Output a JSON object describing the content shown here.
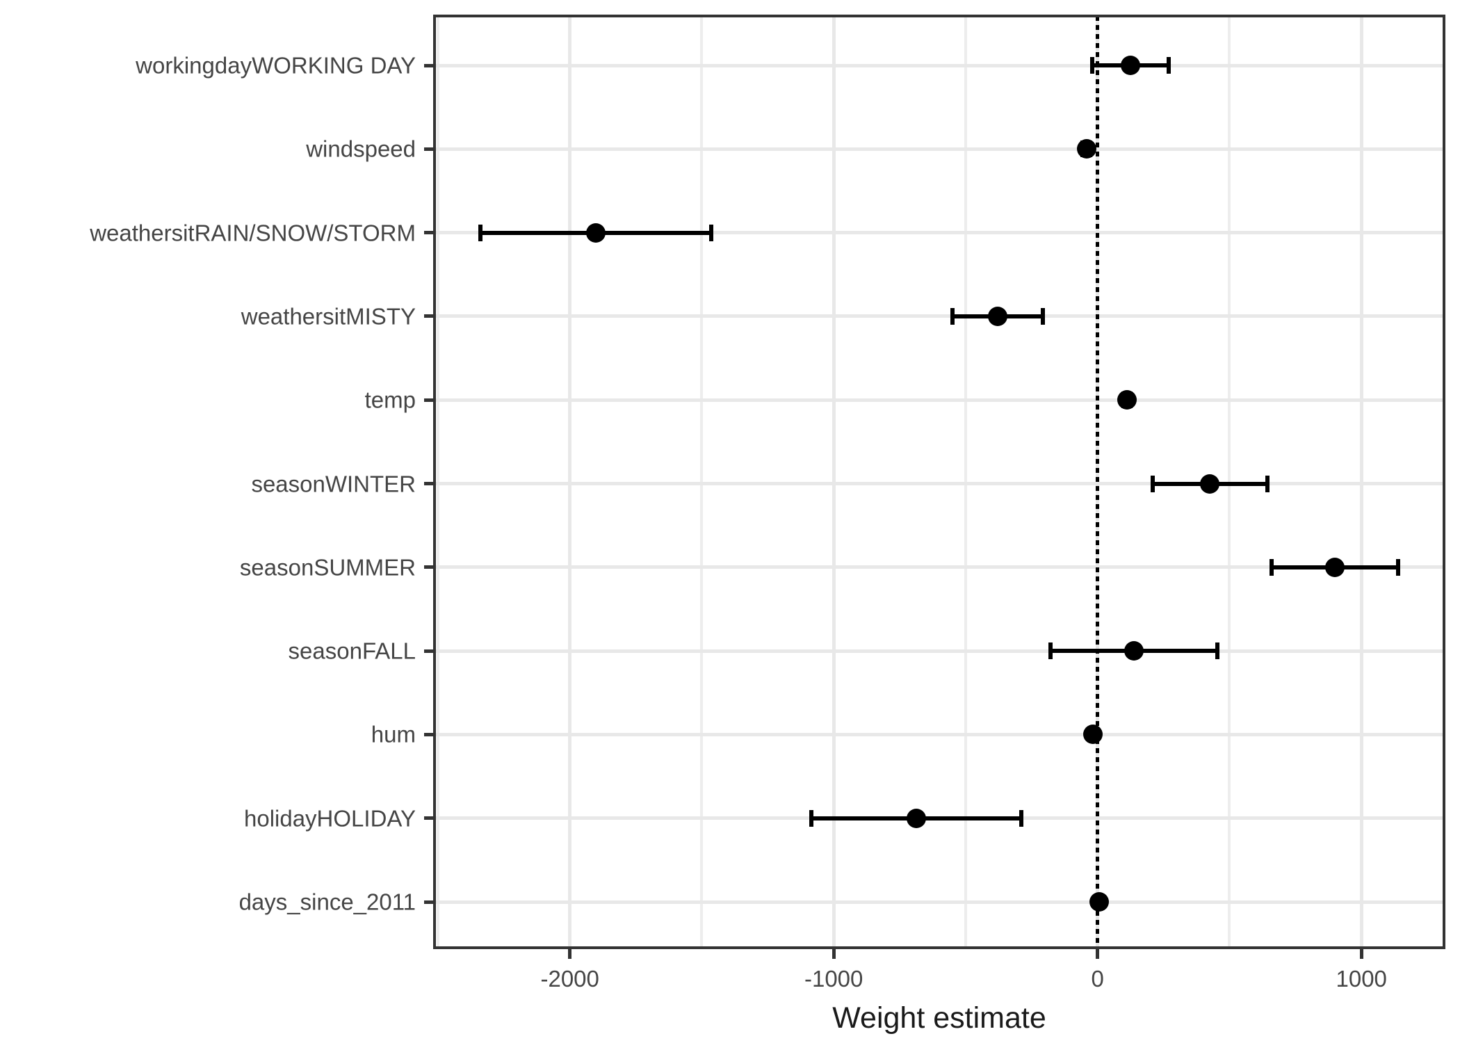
{
  "chart_data": {
    "type": "scatter",
    "subtype": "coefficient-dot-whisker",
    "title": "",
    "xlabel": "Weight estimate",
    "ylabel": "",
    "xlim": [
      -2513,
      1313
    ],
    "grid": "on",
    "legend": "none",
    "zero_reference_line": 0,
    "x_major_ticks": [
      -2000,
      -1000,
      0,
      1000
    ],
    "x_major_tick_labels": [
      "-2000",
      "-1000",
      "0",
      "1000"
    ],
    "x_minor_gridlines": [
      -2500,
      -1500,
      -500,
      500
    ],
    "categories_top_to_bottom": [
      "workingdayWORKING DAY",
      "windspeed",
      "weathersitRAIN/SNOW/STORM",
      "weathersitMISTY",
      "temp",
      "seasonWINTER",
      "seasonSUMMER",
      "seasonFALL",
      "hum",
      "holidayHOLIDAY",
      "days_since_2011"
    ],
    "points": [
      {
        "label": "workingdayWORKING DAY",
        "estimate": 124.9,
        "lower": -19,
        "upper": 269
      },
      {
        "label": "windspeed",
        "estimate": -42.5,
        "lower": -56,
        "upper": -29
      },
      {
        "label": "weathersitRAIN/SNOW/STORM",
        "estimate": -1901.5,
        "lower": -2340,
        "upper": -1463
      },
      {
        "label": "weathersitMISTY",
        "estimate": -379.4,
        "lower": -551,
        "upper": -208
      },
      {
        "label": "temp",
        "estimate": 110.7,
        "lower": 97,
        "upper": 124
      },
      {
        "label": "seasonWINTER",
        "estimate": 425.6,
        "lower": 208,
        "upper": 643
      },
      {
        "label": "seasonSUMMER",
        "estimate": 899.3,
        "lower": 660,
        "upper": 1139
      },
      {
        "label": "seasonFALL",
        "estimate": 138.2,
        "lower": -179,
        "upper": 455
      },
      {
        "label": "hum",
        "estimate": -17.4,
        "lower": -24,
        "upper": -11
      },
      {
        "label": "holidayHOLIDAY",
        "estimate": -686.1,
        "lower": -1085,
        "upper": -288
      },
      {
        "label": "days_since_2011",
        "estimate": 4.9,
        "lower": 4.5,
        "upper": 5.3
      }
    ]
  },
  "colors": {
    "background": "#ffffff",
    "point": "#000000",
    "error_bar": "#000000",
    "zero_line": "#000000",
    "grid_major": "#e8e8e8",
    "grid_minor": "#ededed",
    "panel_border": "#333333",
    "axis_text": "#454545",
    "axis_title": "#1a1a1a",
    "tick_mark": "#333333"
  }
}
